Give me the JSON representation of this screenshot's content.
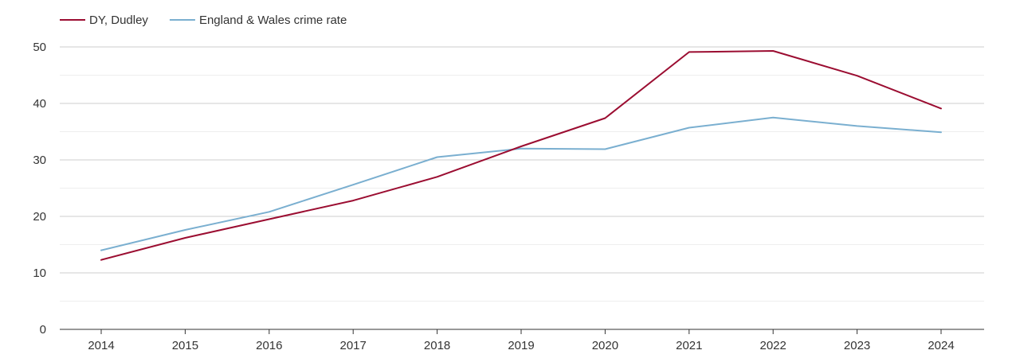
{
  "chart_data": {
    "type": "line",
    "title": "",
    "xlabel": "",
    "ylabel": "",
    "x": [
      "2014",
      "2015",
      "2016",
      "2017",
      "2018",
      "2019",
      "2020",
      "2021",
      "2022",
      "2023",
      "2024"
    ],
    "ylim": [
      0,
      50
    ],
    "yticks": [
      0,
      10,
      20,
      30,
      40,
      50
    ],
    "grid": true,
    "legend_position": "top-left",
    "series": [
      {
        "name": "DY, Dudley",
        "color": "#9b0d31",
        "values": [
          12.3,
          16.2,
          19.5,
          22.8,
          27.0,
          32.4,
          37.4,
          49.1,
          49.3,
          44.9,
          39.1
        ]
      },
      {
        "name": "England & Wales crime rate",
        "color": "#7aafd0",
        "values": [
          14.0,
          17.6,
          20.8,
          25.6,
          30.5,
          32.0,
          31.9,
          35.7,
          37.5,
          36.0,
          34.9
        ]
      }
    ]
  }
}
